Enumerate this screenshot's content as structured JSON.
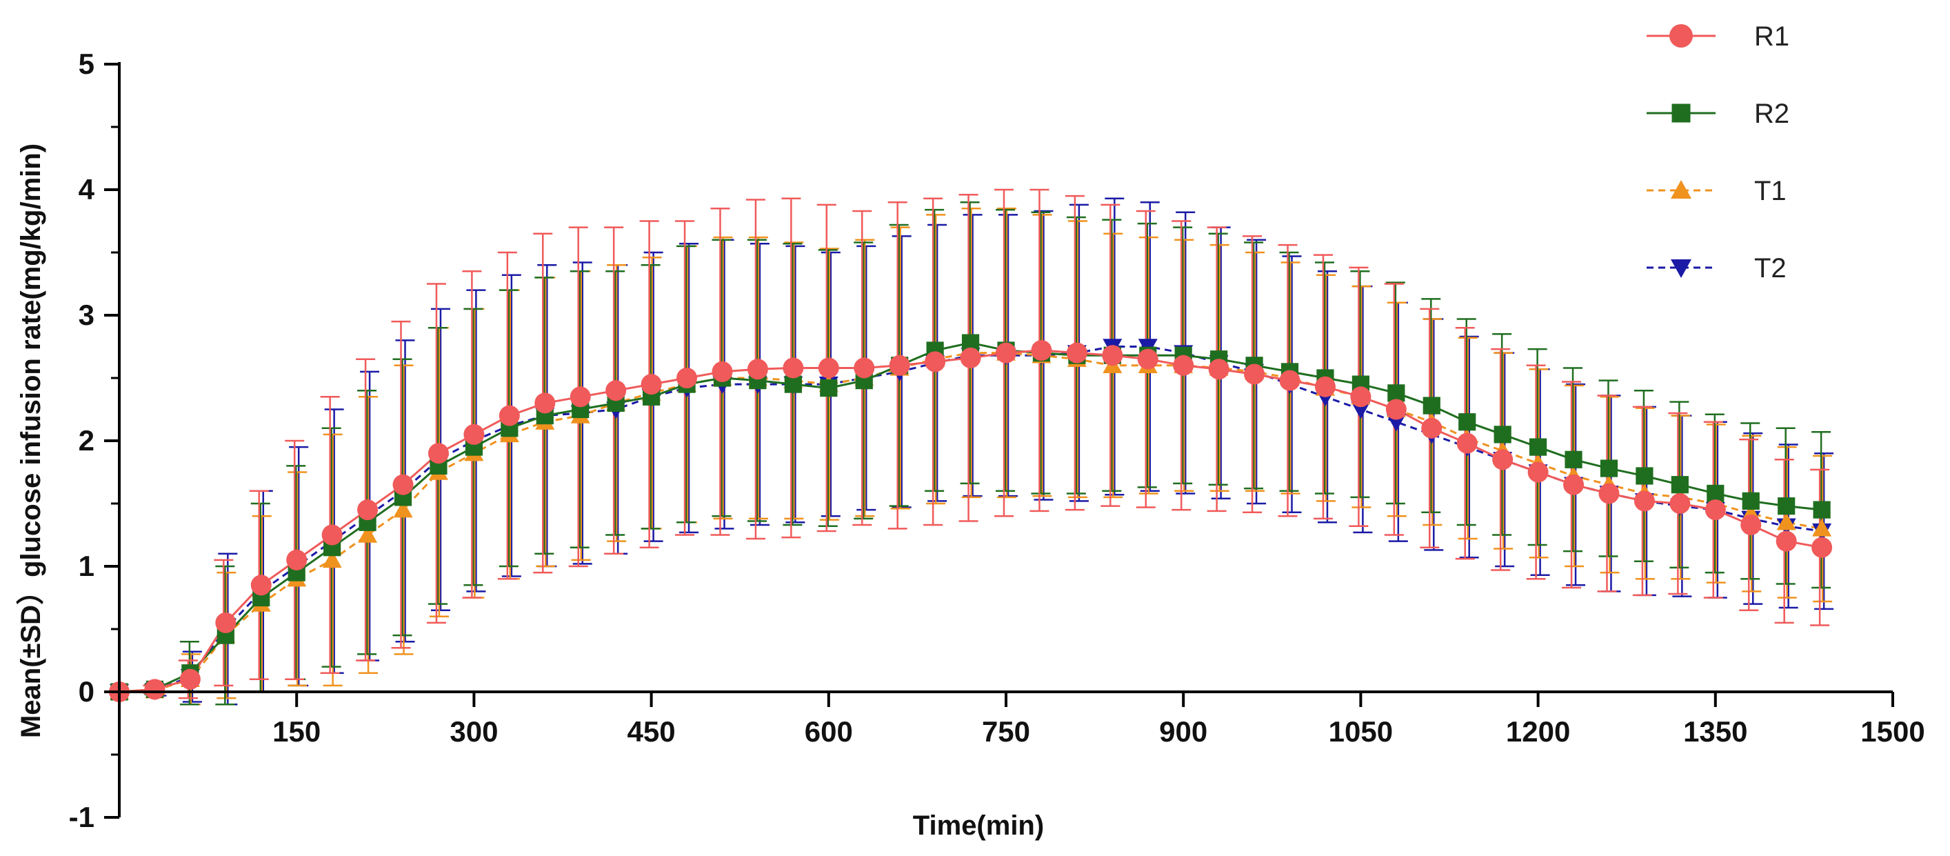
{
  "chart_data": {
    "type": "line",
    "title": "",
    "xlabel": "Time(min)",
    "ylabel": "Mean(±SD）glucose infusion rate(mg/kg/min)",
    "xlim": [
      0,
      1500
    ],
    "ylim": [
      -1,
      5
    ],
    "x_ticks": [
      150,
      300,
      450,
      600,
      750,
      900,
      1050,
      1200,
      1350,
      1500
    ],
    "y_ticks": [
      -1,
      0,
      1,
      2,
      3,
      4,
      5
    ],
    "x_tick_labels": [
      "150",
      "300",
      "450",
      "600",
      "750",
      "900",
      "1050",
      "1200",
      "1350",
      "1500"
    ],
    "y_tick_labels": [
      "-1",
      "0",
      "1",
      "2",
      "3",
      "4",
      "5"
    ],
    "legend_position": "top-right",
    "grid": false,
    "x": [
      0,
      30,
      60,
      90,
      120,
      150,
      180,
      210,
      240,
      270,
      300,
      330,
      360,
      390,
      420,
      450,
      480,
      510,
      540,
      570,
      600,
      630,
      660,
      690,
      720,
      750,
      780,
      810,
      840,
      870,
      900,
      930,
      960,
      990,
      1020,
      1050,
      1080,
      1110,
      1140,
      1170,
      1200,
      1230,
      1260,
      1290,
      1320,
      1350,
      1380,
      1410,
      1440
    ],
    "series": [
      {
        "name": "R1",
        "color": "#f05a5a",
        "marker": "circle",
        "line_style": "solid",
        "values": [
          0,
          0.02,
          0.1,
          0.55,
          0.85,
          1.05,
          1.25,
          1.45,
          1.65,
          1.9,
          2.05,
          2.2,
          2.3,
          2.35,
          2.4,
          2.45,
          2.5,
          2.55,
          2.57,
          2.58,
          2.58,
          2.58,
          2.6,
          2.63,
          2.66,
          2.7,
          2.72,
          2.7,
          2.68,
          2.65,
          2.6,
          2.57,
          2.53,
          2.48,
          2.43,
          2.35,
          2.25,
          2.1,
          1.98,
          1.85,
          1.75,
          1.65,
          1.58,
          1.52,
          1.5,
          1.45,
          1.33,
          1.2,
          1.15
        ],
        "sd": [
          0,
          0.03,
          0.15,
          0.5,
          0.75,
          0.95,
          1.1,
          1.2,
          1.3,
          1.35,
          1.3,
          1.3,
          1.35,
          1.35,
          1.3,
          1.3,
          1.25,
          1.3,
          1.35,
          1.35,
          1.3,
          1.25,
          1.3,
          1.3,
          1.3,
          1.3,
          1.28,
          1.25,
          1.2,
          1.18,
          1.15,
          1.13,
          1.1,
          1.08,
          1.05,
          1.03,
          1.0,
          0.95,
          0.92,
          0.88,
          0.85,
          0.82,
          0.78,
          0.75,
          0.72,
          0.7,
          0.68,
          0.65,
          0.62
        ]
      },
      {
        "name": "R2",
        "color": "#1f6e1f",
        "marker": "square",
        "line_style": "solid",
        "values": [
          0,
          0.02,
          0.15,
          0.45,
          0.75,
          0.95,
          1.15,
          1.35,
          1.55,
          1.8,
          1.95,
          2.1,
          2.2,
          2.25,
          2.3,
          2.35,
          2.45,
          2.5,
          2.48,
          2.45,
          2.42,
          2.48,
          2.6,
          2.72,
          2.78,
          2.72,
          2.7,
          2.68,
          2.68,
          2.68,
          2.68,
          2.65,
          2.6,
          2.55,
          2.5,
          2.45,
          2.38,
          2.28,
          2.15,
          2.05,
          1.95,
          1.85,
          1.78,
          1.72,
          1.65,
          1.58,
          1.52,
          1.48,
          1.45
        ],
        "sd": [
          0,
          0.04,
          0.25,
          0.55,
          0.75,
          0.85,
          0.95,
          1.05,
          1.1,
          1.1,
          1.1,
          1.1,
          1.1,
          1.1,
          1.05,
          1.05,
          1.1,
          1.1,
          1.12,
          1.12,
          1.1,
          1.1,
          1.12,
          1.12,
          1.12,
          1.12,
          1.12,
          1.1,
          1.08,
          1.05,
          1.02,
          1.0,
          0.98,
          0.95,
          0.92,
          0.9,
          0.88,
          0.85,
          0.82,
          0.8,
          0.78,
          0.73,
          0.7,
          0.68,
          0.66,
          0.63,
          0.62,
          0.62,
          0.62
        ]
      },
      {
        "name": "T1",
        "color": "#f0921e",
        "marker": "triangle-up",
        "line_style": "dashed",
        "values": [
          0,
          0.01,
          0.1,
          0.45,
          0.7,
          0.9,
          1.05,
          1.25,
          1.45,
          1.75,
          1.9,
          2.05,
          2.15,
          2.2,
          2.3,
          2.38,
          2.45,
          2.5,
          2.5,
          2.48,
          2.45,
          2.5,
          2.58,
          2.65,
          2.7,
          2.7,
          2.68,
          2.65,
          2.6,
          2.6,
          2.6,
          2.58,
          2.55,
          2.5,
          2.42,
          2.35,
          2.25,
          2.15,
          2.02,
          1.92,
          1.82,
          1.72,
          1.65,
          1.58,
          1.55,
          1.5,
          1.42,
          1.35,
          1.3
        ],
        "sd": [
          0,
          0.03,
          0.2,
          0.5,
          0.7,
          0.85,
          1.0,
          1.1,
          1.15,
          1.15,
          1.15,
          1.15,
          1.15,
          1.15,
          1.1,
          1.08,
          1.1,
          1.12,
          1.12,
          1.1,
          1.08,
          1.1,
          1.12,
          1.15,
          1.15,
          1.15,
          1.12,
          1.1,
          1.05,
          1.02,
          1.0,
          0.98,
          0.95,
          0.92,
          0.9,
          0.88,
          0.85,
          0.82,
          0.8,
          0.78,
          0.75,
          0.72,
          0.7,
          0.68,
          0.65,
          0.63,
          0.62,
          0.6,
          0.58
        ]
      },
      {
        "name": "T2",
        "color": "#1a1aa6",
        "marker": "triangle-down",
        "line_style": "dashed",
        "values": [
          0,
          0.01,
          0.12,
          0.5,
          0.8,
          1.0,
          1.2,
          1.4,
          1.6,
          1.85,
          2.0,
          2.12,
          2.2,
          2.22,
          2.25,
          2.35,
          2.42,
          2.45,
          2.45,
          2.45,
          2.45,
          2.5,
          2.55,
          2.62,
          2.68,
          2.68,
          2.68,
          2.7,
          2.75,
          2.75,
          2.7,
          2.62,
          2.55,
          2.45,
          2.35,
          2.25,
          2.15,
          2.05,
          1.95,
          1.85,
          1.75,
          1.65,
          1.58,
          1.52,
          1.48,
          1.45,
          1.38,
          1.32,
          1.28
        ],
        "sd": [
          0,
          0.04,
          0.2,
          0.6,
          0.8,
          0.95,
          1.05,
          1.15,
          1.2,
          1.2,
          1.2,
          1.2,
          1.2,
          1.2,
          1.15,
          1.15,
          1.15,
          1.15,
          1.12,
          1.1,
          1.05,
          1.05,
          1.08,
          1.1,
          1.12,
          1.12,
          1.15,
          1.18,
          1.18,
          1.15,
          1.12,
          1.08,
          1.05,
          1.02,
          1.0,
          0.98,
          0.95,
          0.92,
          0.88,
          0.85,
          0.82,
          0.8,
          0.78,
          0.75,
          0.72,
          0.7,
          0.68,
          0.65,
          0.62
        ]
      }
    ]
  }
}
